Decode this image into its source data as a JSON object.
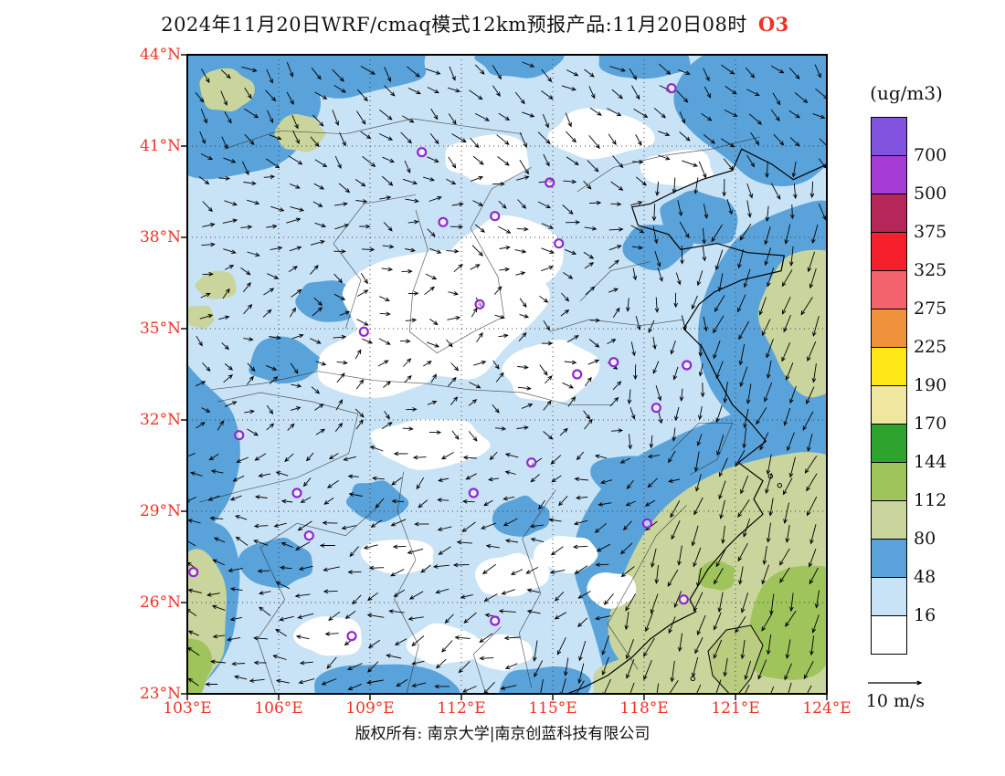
{
  "title": {
    "text": "2024年11月20日WRF/cmaq模式12km预报产品:11月20日08时",
    "species": "O3"
  },
  "colors": {
    "accent_red": "#ee3224",
    "frame": "#000000",
    "marker_purple": "#9325d2"
  },
  "axes": {
    "lat_ticks": [
      "44°N",
      "41°N",
      "38°N",
      "35°N",
      "32°N",
      "29°N",
      "26°N",
      "23°N"
    ],
    "lon_ticks": [
      "103°E",
      "106°E",
      "109°E",
      "112°E",
      "115°E",
      "118°E",
      "121°E",
      "124°E"
    ]
  },
  "legend": {
    "title": "(ug/m3)",
    "values": [
      "700",
      "500",
      "375",
      "325",
      "275",
      "225",
      "190",
      "170",
      "144",
      "112",
      "80",
      "48",
      "16"
    ],
    "cell_colors": [
      "#8153de",
      "#a43bd4",
      "#b52758",
      "#f5202c",
      "#f2636e",
      "#f0923c",
      "#ffe818",
      "#efe6a0",
      "#2ea32e",
      "#9fc45c",
      "#c9d59c",
      "#5aa3da",
      "#c9e3f6",
      "#ffffff"
    ]
  },
  "wind_legend": {
    "label": "10 m/s"
  },
  "footer": {
    "copyright": "版权所有: 南京大学|南京创蓝科技有限公司"
  },
  "chart_data": {
    "type": "heatmap",
    "title": "2024年11月20日WRF/cmaq模式12km预报产品:11月20日08时 O3",
    "units": "ug/m3",
    "lon_range": [
      103,
      124
    ],
    "lat_range": [
      23,
      44
    ],
    "levels": [
      16,
      48,
      80,
      112,
      144,
      170,
      190,
      225,
      275,
      325,
      375,
      500,
      700
    ],
    "palette_low_to_high": [
      "#ffffff",
      "#c9e3f6",
      "#5aa3da",
      "#c9d59c",
      "#9fc45c",
      "#2ea32e",
      "#efe6a0",
      "#ffe818",
      "#f0923c",
      "#f2636e",
      "#f5202c",
      "#b52758",
      "#a43bd4",
      "#8153de"
    ],
    "wind_reference": "10 m/s",
    "field_regions": [
      {
        "l": "48-80",
        "x": 104.0,
        "y": 42.6,
        "rx": 3.4,
        "ry": 2.8,
        "rot": 0
      },
      {
        "l": "48-80",
        "x": 108.6,
        "y": 43.8,
        "rx": 2.4,
        "ry": 1.2,
        "rot": 0
      },
      {
        "l": "48-80",
        "x": 113.9,
        "y": 43.9,
        "rx": 1.4,
        "ry": 0.7,
        "rot": 0
      },
      {
        "l": "48-80",
        "x": 122.4,
        "y": 42.4,
        "rx": 3.1,
        "ry": 2.5,
        "rot": 0
      },
      {
        "l": "48-80",
        "x": 118.0,
        "y": 43.9,
        "rx": 1.6,
        "ry": 0.8,
        "rot": 0
      },
      {
        "l": "48-80",
        "x": 123.4,
        "y": 35.2,
        "rx": 3.4,
        "ry": 3.8,
        "rot": 0
      },
      {
        "l": "48-80",
        "x": 122.6,
        "y": 30.8,
        "rx": 2.6,
        "ry": 3.2,
        "rot": -20
      },
      {
        "l": "48-80",
        "x": 121.6,
        "y": 26.9,
        "rx": 6.0,
        "ry": 6.6,
        "rot": -35
      },
      {
        "l": "48-80",
        "x": 103.1,
        "y": 31.0,
        "rx": 1.5,
        "ry": 2.8,
        "rot": 0
      },
      {
        "l": "48-80",
        "x": 103.3,
        "y": 26.0,
        "rx": 1.6,
        "ry": 3.0,
        "rot": 0
      },
      {
        "l": "48-80",
        "x": 119.9,
        "y": 38.6,
        "rx": 1.4,
        "ry": 0.9,
        "rot": 0
      },
      {
        "l": "48-80",
        "x": 118.4,
        "y": 37.7,
        "rx": 1.1,
        "ry": 0.8,
        "rot": 0
      },
      {
        "l": "48-80",
        "x": 106.2,
        "y": 33.9,
        "rx": 1.2,
        "ry": 0.8,
        "rot": 0
      },
      {
        "l": "48-80",
        "x": 107.6,
        "y": 35.9,
        "rx": 1.0,
        "ry": 0.7,
        "rot": 0
      },
      {
        "l": "48-80",
        "x": 109.6,
        "y": 23.1,
        "rx": 2.4,
        "ry": 1.0,
        "rot": 0
      },
      {
        "l": "48-80",
        "x": 114.7,
        "y": 23.1,
        "rx": 1.6,
        "ry": 0.8,
        "rot": 0
      },
      {
        "l": "48-80",
        "x": 105.9,
        "y": 27.3,
        "rx": 1.2,
        "ry": 0.8,
        "rot": 0
      },
      {
        "l": "48-80",
        "x": 109.2,
        "y": 29.3,
        "rx": 1.0,
        "ry": 0.7,
        "rot": 0
      },
      {
        "l": "48-80",
        "x": 113.9,
        "y": 28.8,
        "rx": 1.0,
        "ry": 0.7,
        "rot": 0
      },
      {
        "l": "48-80",
        "x": 117.3,
        "y": 30.2,
        "rx": 1.1,
        "ry": 0.7,
        "rot": 0
      },
      {
        "l": "80-112",
        "x": 121.9,
        "y": 26.5,
        "rx": 4.6,
        "ry": 5.2,
        "rot": -35
      },
      {
        "l": "80-112",
        "x": 118.9,
        "y": 23.2,
        "rx": 2.8,
        "ry": 1.4,
        "rot": 0
      },
      {
        "l": "80-112",
        "x": 123.8,
        "y": 35.4,
        "rx": 2.0,
        "ry": 2.6,
        "rot": 0
      },
      {
        "l": "80-112",
        "x": 104.3,
        "y": 42.8,
        "rx": 0.9,
        "ry": 0.7,
        "rot": 0
      },
      {
        "l": "80-112",
        "x": 106.7,
        "y": 41.4,
        "rx": 0.8,
        "ry": 0.6,
        "rot": 0
      },
      {
        "l": "80-112",
        "x": 104.0,
        "y": 36.4,
        "rx": 0.7,
        "ry": 0.5,
        "rot": 0
      },
      {
        "l": "80-112",
        "x": 103.4,
        "y": 35.4,
        "rx": 0.5,
        "ry": 0.4,
        "rot": 0
      },
      {
        "l": "80-112",
        "x": 103.2,
        "y": 25.3,
        "rx": 1.1,
        "ry": 2.4,
        "rot": 0
      },
      {
        "l": "112-144",
        "x": 122.9,
        "y": 25.3,
        "rx": 1.6,
        "ry": 2.2,
        "rot": -25
      },
      {
        "l": "112-144",
        "x": 120.4,
        "y": 26.9,
        "rx": 0.6,
        "ry": 0.5,
        "rot": 0
      },
      {
        "l": "112-144",
        "x": 103.0,
        "y": 23.9,
        "rx": 0.8,
        "ry": 1.1,
        "rot": 0
      },
      {
        "l": "lt16",
        "x": 111.4,
        "y": 35.6,
        "rx": 3.3,
        "ry": 2.3,
        "rot": 8
      },
      {
        "l": "lt16",
        "x": 113.6,
        "y": 37.4,
        "rx": 1.9,
        "ry": 1.3,
        "rot": 0
      },
      {
        "l": "lt16",
        "x": 109.2,
        "y": 33.8,
        "rx": 1.9,
        "ry": 1.2,
        "rot": 0
      },
      {
        "l": "lt16",
        "x": 114.9,
        "y": 33.6,
        "rx": 1.6,
        "ry": 1.0,
        "rot": 0
      },
      {
        "l": "lt16",
        "x": 110.9,
        "y": 31.2,
        "rx": 1.9,
        "ry": 0.9,
        "rot": 0
      },
      {
        "l": "lt16",
        "x": 112.9,
        "y": 40.6,
        "rx": 1.4,
        "ry": 0.8,
        "rot": 0
      },
      {
        "l": "lt16",
        "x": 116.6,
        "y": 41.4,
        "rx": 1.7,
        "ry": 0.8,
        "rot": 0
      },
      {
        "l": "lt16",
        "x": 119.1,
        "y": 40.3,
        "rx": 1.2,
        "ry": 0.6,
        "rot": 0
      },
      {
        "l": "lt16",
        "x": 109.9,
        "y": 27.5,
        "rx": 1.2,
        "ry": 0.6,
        "rot": 0
      },
      {
        "l": "lt16",
        "x": 107.7,
        "y": 24.9,
        "rx": 1.1,
        "ry": 0.7,
        "rot": 0
      },
      {
        "l": "lt16",
        "x": 116.9,
        "y": 26.4,
        "rx": 0.9,
        "ry": 0.6,
        "rot": 0
      },
      {
        "l": "lt16",
        "x": 111.4,
        "y": 24.6,
        "rx": 1.3,
        "ry": 0.7,
        "rot": 0
      },
      {
        "l": "lt16",
        "x": 113.3,
        "y": 24.4,
        "rx": 1.0,
        "ry": 0.6,
        "rot": 0
      },
      {
        "l": "lt16",
        "x": 113.6,
        "y": 26.9,
        "rx": 1.2,
        "ry": 0.7,
        "rot": 0
      },
      {
        "l": "lt16",
        "x": 115.4,
        "y": 27.6,
        "rx": 1.0,
        "ry": 0.6,
        "rot": 0
      }
    ],
    "city_markers": [
      [
        118.9,
        42.9
      ],
      [
        110.7,
        40.8
      ],
      [
        114.9,
        39.8
      ],
      [
        111.4,
        38.5
      ],
      [
        113.1,
        38.7
      ],
      [
        115.2,
        37.8
      ],
      [
        112.6,
        35.8
      ],
      [
        108.8,
        34.9
      ],
      [
        115.8,
        33.5
      ],
      [
        117.0,
        33.9
      ],
      [
        118.4,
        32.4
      ],
      [
        119.4,
        33.8
      ],
      [
        104.7,
        31.5
      ],
      [
        106.6,
        29.6
      ],
      [
        114.3,
        30.6
      ],
      [
        112.4,
        29.6
      ],
      [
        118.1,
        28.6
      ],
      [
        107.0,
        28.2
      ],
      [
        103.2,
        27.0
      ],
      [
        108.4,
        24.9
      ],
      [
        113.1,
        25.4
      ],
      [
        119.3,
        26.1
      ]
    ],
    "coastline": [
      [
        124,
        40.4
      ],
      [
        122.9,
        39.9
      ],
      [
        122.2,
        40.4
      ],
      [
        121.2,
        40.9
      ],
      [
        120.9,
        40.2
      ],
      [
        119.9,
        39.9
      ],
      [
        119,
        39.5
      ],
      [
        118.2,
        39.1
      ],
      [
        117.6,
        39
      ],
      [
        117.8,
        38.4
      ],
      [
        118.8,
        38.1
      ],
      [
        119.2,
        37.6
      ],
      [
        120.4,
        37.8
      ],
      [
        121.4,
        37.5
      ],
      [
        122.6,
        37.4
      ],
      [
        122.5,
        36.9
      ],
      [
        121.2,
        36.6
      ],
      [
        120.3,
        36.2
      ],
      [
        119.8,
        35.8
      ],
      [
        119.3,
        35
      ],
      [
        119.9,
        34.4
      ],
      [
        120.4,
        33.4
      ],
      [
        120.9,
        32.5
      ],
      [
        121.5,
        31.9
      ],
      [
        122,
        31.3
      ],
      [
        121.1,
        30.6
      ],
      [
        121.9,
        30
      ],
      [
        121.6,
        29.4
      ],
      [
        121.9,
        28.9
      ],
      [
        121.1,
        28.2
      ],
      [
        120.7,
        27.8
      ],
      [
        120.1,
        27.1
      ],
      [
        119.8,
        26.6
      ],
      [
        119.5,
        26.1
      ],
      [
        119.7,
        25.7
      ],
      [
        118.9,
        25.3
      ],
      [
        118.2,
        24.8
      ],
      [
        117.6,
        24.2
      ],
      [
        116.8,
        23.6
      ],
      [
        116,
        23.2
      ],
      [
        115.2,
        22.9
      ]
    ],
    "taiwan": [
      [
        120.8,
        23.0
      ],
      [
        120.25,
        23.6
      ],
      [
        120.1,
        24.4
      ],
      [
        120.7,
        25.1
      ],
      [
        121.5,
        25.25
      ],
      [
        121.9,
        24.6
      ],
      [
        121.5,
        23.5
      ],
      [
        121.1,
        23.0
      ]
    ],
    "islands": [
      [
        122.15,
        30.15
      ],
      [
        122.45,
        29.85
      ],
      [
        119.6,
        23.5
      ]
    ]
  }
}
